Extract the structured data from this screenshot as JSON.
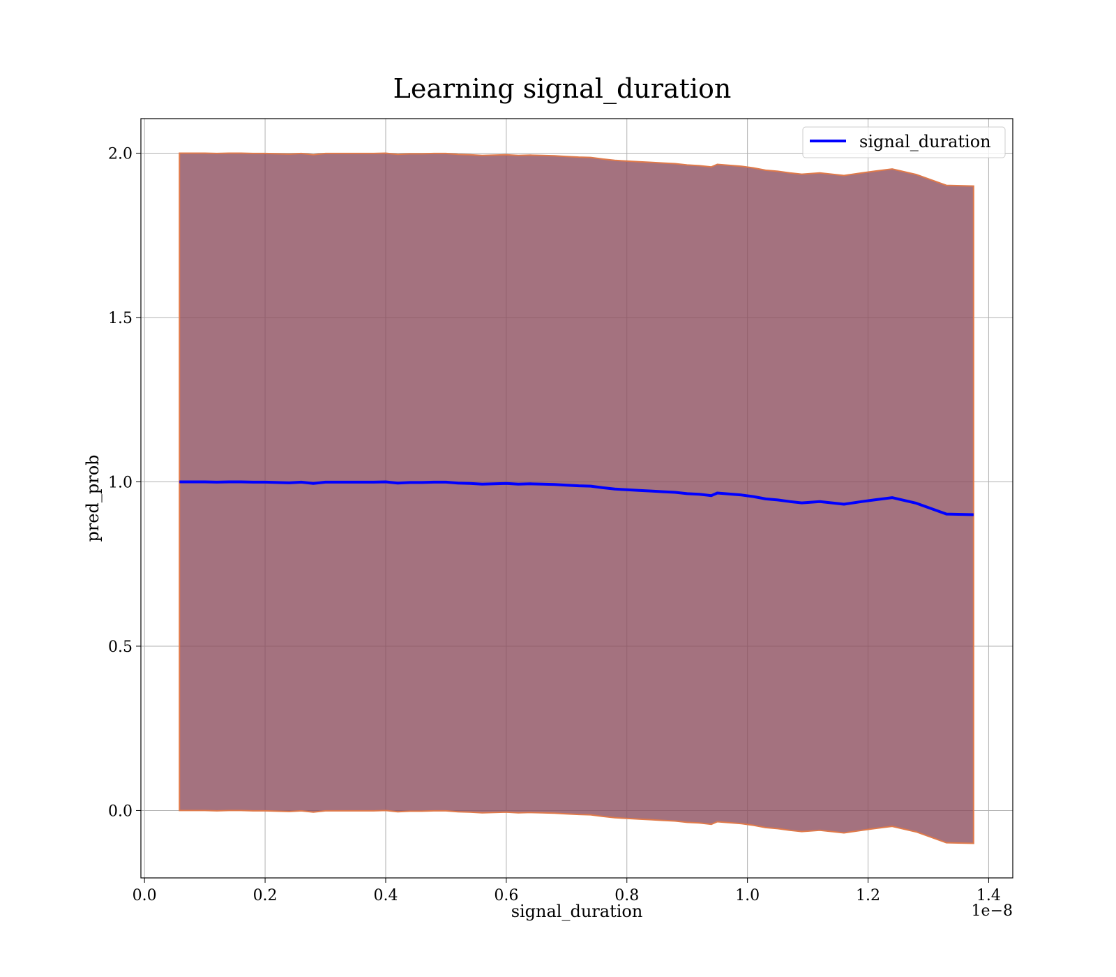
{
  "chart_data": {
    "type": "line",
    "title": "Learning signal_duration",
    "xlabel": "signal_duration",
    "ylabel": "pred_prob",
    "x_offset_label": "1e−8",
    "xlim": [
      -0.006,
      1.44
    ],
    "ylim": [
      -0.205,
      2.105
    ],
    "x_ticks": [
      0.0,
      0.2,
      0.4,
      0.6,
      0.8,
      1.0,
      1.2,
      1.4
    ],
    "x_tick_labels": [
      "0.0",
      "0.2",
      "0.4",
      "0.6",
      "0.8",
      "1.0",
      "1.2",
      "1.4"
    ],
    "y_ticks": [
      0.0,
      0.5,
      1.0,
      1.5,
      2.0
    ],
    "y_tick_labels": [
      "0.0",
      "0.5",
      "1.0",
      "1.5",
      "2.0"
    ],
    "grid": true,
    "legend_position": "top-right",
    "colors": {
      "line": "#0000ff",
      "band_fill": "#8b4a5b",
      "band_edge": "#e07a4a",
      "grid": "#b0b0b0"
    },
    "series": [
      {
        "name": "signal_duration",
        "x": [
          0.058,
          0.08,
          0.1,
          0.12,
          0.14,
          0.16,
          0.18,
          0.2,
          0.22,
          0.24,
          0.26,
          0.28,
          0.3,
          0.32,
          0.34,
          0.36,
          0.38,
          0.4,
          0.42,
          0.44,
          0.46,
          0.48,
          0.5,
          0.52,
          0.54,
          0.56,
          0.58,
          0.6,
          0.62,
          0.64,
          0.66,
          0.68,
          0.7,
          0.72,
          0.74,
          0.76,
          0.78,
          0.8,
          0.82,
          0.84,
          0.86,
          0.88,
          0.9,
          0.92,
          0.94,
          0.95,
          0.97,
          0.99,
          1.01,
          1.03,
          1.05,
          1.07,
          1.09,
          1.12,
          1.16,
          1.19,
          1.21,
          1.24,
          1.28,
          1.33,
          1.375
        ],
        "y": [
          1.0,
          1.0,
          1.0,
          0.999,
          1.0,
          1.0,
          0.999,
          0.999,
          0.998,
          0.997,
          0.999,
          0.995,
          0.999,
          0.999,
          0.999,
          0.999,
          0.999,
          1.0,
          0.996,
          0.998,
          0.998,
          0.999,
          0.999,
          0.996,
          0.995,
          0.993,
          0.994,
          0.995,
          0.993,
          0.994,
          0.993,
          0.992,
          0.99,
          0.988,
          0.987,
          0.982,
          0.978,
          0.976,
          0.974,
          0.972,
          0.97,
          0.968,
          0.964,
          0.962,
          0.958,
          0.966,
          0.963,
          0.96,
          0.955,
          0.948,
          0.945,
          0.94,
          0.936,
          0.94,
          0.932,
          0.94,
          0.945,
          0.952,
          0.935,
          0.902,
          0.9
        ],
        "upper": [
          2.0,
          2.0,
          2.0,
          1.999,
          2.0,
          2.0,
          1.999,
          1.999,
          1.998,
          1.997,
          1.999,
          1.995,
          1.999,
          1.999,
          1.999,
          1.999,
          1.999,
          2.0,
          1.996,
          1.998,
          1.998,
          1.999,
          1.999,
          1.996,
          1.995,
          1.993,
          1.994,
          1.995,
          1.993,
          1.994,
          1.993,
          1.992,
          1.99,
          1.988,
          1.987,
          1.982,
          1.978,
          1.976,
          1.974,
          1.972,
          1.97,
          1.968,
          1.964,
          1.962,
          1.958,
          1.966,
          1.963,
          1.96,
          1.955,
          1.948,
          1.945,
          1.94,
          1.936,
          1.94,
          1.932,
          1.94,
          1.945,
          1.952,
          1.935,
          1.902,
          1.9
        ],
        "lower": [
          0.0,
          0.0,
          0.0,
          -0.001,
          0.0,
          0.0,
          -0.001,
          -0.001,
          -0.002,
          -0.003,
          -0.001,
          -0.005,
          -0.001,
          -0.001,
          -0.001,
          -0.001,
          -0.001,
          0.0,
          -0.004,
          -0.002,
          -0.002,
          -0.001,
          -0.001,
          -0.004,
          -0.005,
          -0.007,
          -0.006,
          -0.005,
          -0.007,
          -0.006,
          -0.007,
          -0.008,
          -0.01,
          -0.012,
          -0.013,
          -0.018,
          -0.022,
          -0.024,
          -0.026,
          -0.028,
          -0.03,
          -0.032,
          -0.036,
          -0.038,
          -0.042,
          -0.034,
          -0.037,
          -0.04,
          -0.045,
          -0.052,
          -0.055,
          -0.06,
          -0.064,
          -0.06,
          -0.068,
          -0.06,
          -0.055,
          -0.048,
          -0.065,
          -0.098,
          -0.1
        ]
      }
    ]
  }
}
